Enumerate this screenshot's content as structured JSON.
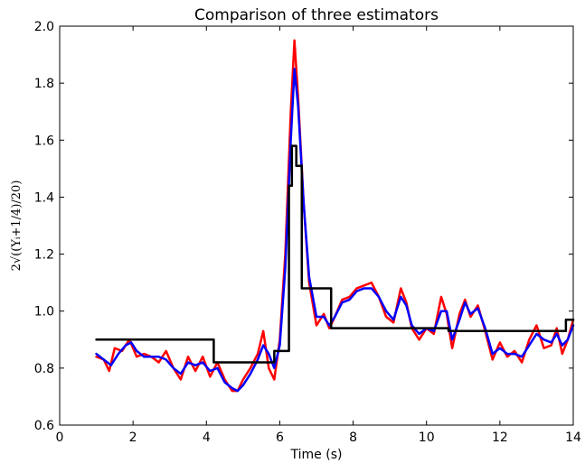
{
  "chart_data": {
    "type": "line",
    "title": "Comparison of three estimators",
    "xlabel": "Time (s)",
    "ylabel": "2√((Yᵢ+1/4)/20)",
    "xlim": [
      0,
      14
    ],
    "ylim": [
      0.6,
      2.0
    ],
    "xticks": [
      "0",
      "2",
      "4",
      "6",
      "8",
      "10",
      "12",
      "14"
    ],
    "yticks": [
      "0.6",
      "0.8",
      "1.0",
      "1.2",
      "1.4",
      "1.6",
      "1.8",
      "2.0"
    ],
    "grid": false,
    "legend": "none",
    "series": [
      {
        "color": "#ff0000",
        "x": [
          1.0,
          1.2,
          1.35,
          1.5,
          1.7,
          1.9,
          2.1,
          2.3,
          2.5,
          2.7,
          2.9,
          3.1,
          3.3,
          3.5,
          3.7,
          3.9,
          4.1,
          4.3,
          4.5,
          4.7,
          4.85,
          5.0,
          5.2,
          5.4,
          5.55,
          5.7,
          5.85,
          6.0,
          6.15,
          6.3,
          6.4,
          6.5,
          6.65,
          6.8,
          7.0,
          7.2,
          7.35,
          7.5,
          7.7,
          7.9,
          8.1,
          8.3,
          8.5,
          8.7,
          8.9,
          9.1,
          9.3,
          9.45,
          9.6,
          9.8,
          10.0,
          10.2,
          10.4,
          10.55,
          10.7,
          10.9,
          11.05,
          11.2,
          11.4,
          11.6,
          11.8,
          12.0,
          12.2,
          12.4,
          12.6,
          12.8,
          13.0,
          13.2,
          13.4,
          13.55,
          13.7,
          13.85,
          14.0
        ],
        "y": [
          0.84,
          0.83,
          0.79,
          0.87,
          0.86,
          0.9,
          0.84,
          0.85,
          0.84,
          0.82,
          0.86,
          0.8,
          0.76,
          0.84,
          0.79,
          0.84,
          0.77,
          0.82,
          0.76,
          0.72,
          0.72,
          0.76,
          0.8,
          0.85,
          0.93,
          0.8,
          0.76,
          0.9,
          1.2,
          1.7,
          1.95,
          1.75,
          1.38,
          1.1,
          0.95,
          0.99,
          0.94,
          0.98,
          1.04,
          1.05,
          1.08,
          1.09,
          1.1,
          1.05,
          0.98,
          0.96,
          1.08,
          1.03,
          0.94,
          0.9,
          0.94,
          0.92,
          1.05,
          0.99,
          0.87,
          0.99,
          1.04,
          0.98,
          1.02,
          0.93,
          0.83,
          0.89,
          0.84,
          0.86,
          0.82,
          0.9,
          0.95,
          0.87,
          0.88,
          0.94,
          0.85,
          0.9,
          0.97
        ]
      },
      {
        "color": "#0000ff",
        "x": [
          1.0,
          1.2,
          1.4,
          1.6,
          1.8,
          1.95,
          2.1,
          2.3,
          2.5,
          2.7,
          2.9,
          3.1,
          3.3,
          3.5,
          3.7,
          3.9,
          4.1,
          4.3,
          4.5,
          4.7,
          4.85,
          5.0,
          5.2,
          5.4,
          5.55,
          5.7,
          5.85,
          6.0,
          6.15,
          6.3,
          6.4,
          6.5,
          6.65,
          6.8,
          7.0,
          7.2,
          7.35,
          7.5,
          7.7,
          7.9,
          8.1,
          8.3,
          8.5,
          8.7,
          8.9,
          9.1,
          9.3,
          9.45,
          9.6,
          9.8,
          10.0,
          10.2,
          10.4,
          10.55,
          10.7,
          10.9,
          11.05,
          11.2,
          11.4,
          11.6,
          11.8,
          12.0,
          12.2,
          12.4,
          12.6,
          12.8,
          13.0,
          13.2,
          13.4,
          13.55,
          13.7,
          13.85,
          14.0
        ],
        "y": [
          0.85,
          0.83,
          0.81,
          0.85,
          0.88,
          0.89,
          0.86,
          0.84,
          0.84,
          0.84,
          0.83,
          0.8,
          0.78,
          0.82,
          0.81,
          0.82,
          0.79,
          0.8,
          0.75,
          0.73,
          0.72,
          0.74,
          0.78,
          0.83,
          0.88,
          0.85,
          0.8,
          0.88,
          1.15,
          1.6,
          1.85,
          1.72,
          1.38,
          1.12,
          0.98,
          0.98,
          0.95,
          0.98,
          1.03,
          1.04,
          1.07,
          1.08,
          1.08,
          1.05,
          1.0,
          0.97,
          1.05,
          1.02,
          0.95,
          0.92,
          0.94,
          0.93,
          1.0,
          1.0,
          0.9,
          0.97,
          1.03,
          0.99,
          1.01,
          0.94,
          0.85,
          0.87,
          0.85,
          0.85,
          0.84,
          0.88,
          0.92,
          0.9,
          0.89,
          0.92,
          0.88,
          0.9,
          0.95
        ]
      },
      {
        "color": "#000000",
        "x": [
          1.0,
          4.2,
          4.2,
          5.85,
          5.85,
          6.25,
          6.25,
          6.33,
          6.33,
          6.45,
          6.45,
          6.6,
          6.6,
          7.4,
          7.4,
          10.2,
          10.2,
          10.6,
          10.6,
          13.8,
          13.8,
          14.0
        ],
        "y": [
          0.9,
          0.9,
          0.82,
          0.82,
          0.86,
          0.86,
          1.44,
          1.44,
          1.58,
          1.58,
          1.51,
          1.51,
          1.08,
          1.08,
          0.94,
          0.94,
          0.94,
          0.94,
          0.93,
          0.93,
          0.97,
          0.97
        ]
      }
    ]
  }
}
